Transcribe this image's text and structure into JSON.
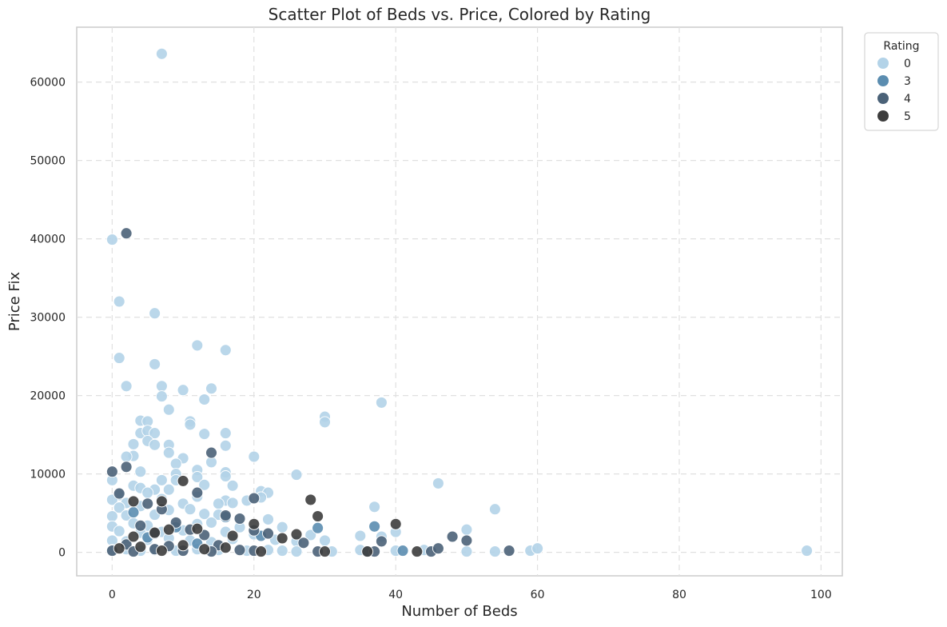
{
  "chart_data": {
    "type": "scatter",
    "title": "Scatter Plot of Beds vs. Price, Colored by Rating",
    "xlabel": "Number of Beds",
    "ylabel": "Price Fix",
    "xlim": [
      -5,
      103
    ],
    "ylim": [
      -3000,
      67000
    ],
    "x_ticks": [
      0,
      20,
      40,
      60,
      80,
      100
    ],
    "y_ticks": [
      0,
      10000,
      20000,
      30000,
      40000,
      50000,
      60000
    ],
    "grid": true,
    "legend": {
      "title": "Rating",
      "placement": "outside-top-right",
      "entries": [
        {
          "label": "0",
          "color": "#b3d3e8"
        },
        {
          "label": "3",
          "color": "#5b8db0"
        },
        {
          "label": "4",
          "color": "#4b6278"
        },
        {
          "label": "5",
          "color": "#3d3d3d"
        }
      ]
    },
    "series": [
      {
        "name": "0",
        "color": "#b3d3e8",
        "points": [
          [
            7,
            63600
          ],
          [
            0,
            39900
          ],
          [
            1,
            32000
          ],
          [
            6,
            30500
          ],
          [
            1,
            24800
          ],
          [
            12,
            26400
          ],
          [
            16,
            25800
          ],
          [
            6,
            24000
          ],
          [
            2,
            21200
          ],
          [
            7,
            21200
          ],
          [
            14,
            20900
          ],
          [
            10,
            20700
          ],
          [
            7,
            19900
          ],
          [
            13,
            19500
          ],
          [
            38,
            19100
          ],
          [
            8,
            18200
          ],
          [
            30,
            17300
          ],
          [
            30,
            16600
          ],
          [
            4,
            16800
          ],
          [
            5,
            16700
          ],
          [
            11,
            16700
          ],
          [
            11,
            16300
          ],
          [
            4,
            15200
          ],
          [
            5,
            15500
          ],
          [
            6,
            15200
          ],
          [
            13,
            15100
          ],
          [
            16,
            15200
          ],
          [
            5,
            14200
          ],
          [
            3,
            13800
          ],
          [
            6,
            13700
          ],
          [
            8,
            13700
          ],
          [
            16,
            13600
          ],
          [
            8,
            12700
          ],
          [
            3,
            12300
          ],
          [
            2,
            12200
          ],
          [
            10,
            12000
          ],
          [
            20,
            12200
          ],
          [
            14,
            11500
          ],
          [
            9,
            11300
          ],
          [
            4,
            10300
          ],
          [
            12,
            10500
          ],
          [
            16,
            10200
          ],
          [
            9,
            10000
          ],
          [
            26,
            9900
          ],
          [
            0,
            9200
          ],
          [
            7,
            9200
          ],
          [
            9,
            9200
          ],
          [
            12,
            9600
          ],
          [
            16,
            9700
          ],
          [
            46,
            8800
          ],
          [
            3,
            8500
          ],
          [
            4,
            8200
          ],
          [
            6,
            8000
          ],
          [
            13,
            8600
          ],
          [
            17,
            8500
          ],
          [
            21,
            7800
          ],
          [
            22,
            7600
          ],
          [
            5,
            7600
          ],
          [
            8,
            8000
          ],
          [
            1,
            7300
          ],
          [
            0,
            6700
          ],
          [
            7,
            6800
          ],
          [
            12,
            7100
          ],
          [
            16,
            6600
          ],
          [
            21,
            7000
          ],
          [
            19,
            6600
          ],
          [
            2,
            6300
          ],
          [
            10,
            6200
          ],
          [
            15,
            6200
          ],
          [
            17,
            6300
          ],
          [
            1,
            5700
          ],
          [
            4,
            5900
          ],
          [
            8,
            5400
          ],
          [
            11,
            5500
          ],
          [
            37,
            5800
          ],
          [
            54,
            5500
          ],
          [
            0,
            4600
          ],
          [
            2,
            4700
          ],
          [
            6,
            4800
          ],
          [
            13,
            4900
          ],
          [
            15,
            4800
          ],
          [
            22,
            4200
          ],
          [
            0,
            3300
          ],
          [
            3,
            3700
          ],
          [
            5,
            3400
          ],
          [
            9,
            3500
          ],
          [
            12,
            3600
          ],
          [
            14,
            3800
          ],
          [
            18,
            3200
          ],
          [
            24,
            3200
          ],
          [
            1,
            2700
          ],
          [
            4,
            2500
          ],
          [
            7,
            2600
          ],
          [
            10,
            2800
          ],
          [
            16,
            2600
          ],
          [
            20,
            2300
          ],
          [
            28,
            2200
          ],
          [
            35,
            2100
          ],
          [
            38,
            2000
          ],
          [
            40,
            2600
          ],
          [
            50,
            2900
          ],
          [
            0,
            1500
          ],
          [
            2,
            1400
          ],
          [
            5,
            1600
          ],
          [
            8,
            1800
          ],
          [
            11,
            1500
          ],
          [
            14,
            1300
          ],
          [
            17,
            1700
          ],
          [
            23,
            1600
          ],
          [
            26,
            1400
          ],
          [
            30,
            1500
          ],
          [
            0,
            300
          ],
          [
            2,
            400
          ],
          [
            4,
            200
          ],
          [
            6,
            300
          ],
          [
            9,
            200
          ],
          [
            12,
            400
          ],
          [
            15,
            300
          ],
          [
            19,
            200
          ],
          [
            22,
            300
          ],
          [
            24,
            200
          ],
          [
            26,
            100
          ],
          [
            31,
            100
          ],
          [
            35,
            300
          ],
          [
            40,
            200
          ],
          [
            44,
            300
          ],
          [
            50,
            100
          ],
          [
            54,
            100
          ],
          [
            59,
            200
          ],
          [
            60,
            500
          ],
          [
            98,
            200
          ]
        ]
      },
      {
        "name": "3",
        "color": "#5b8db0",
        "points": [
          [
            3,
            5100
          ],
          [
            9,
            3200
          ],
          [
            16,
            4500
          ],
          [
            29,
            3100
          ],
          [
            37,
            3300
          ],
          [
            5,
            1900
          ],
          [
            12,
            1100
          ],
          [
            21,
            2100
          ],
          [
            36,
            100
          ],
          [
            41,
            200
          ]
        ]
      },
      {
        "name": "4",
        "color": "#4b6278",
        "points": [
          [
            2,
            40700
          ],
          [
            0,
            10300
          ],
          [
            2,
            10900
          ],
          [
            14,
            12700
          ],
          [
            1,
            7500
          ],
          [
            12,
            7600
          ],
          [
            20,
            6900
          ],
          [
            5,
            6200
          ],
          [
            7,
            5500
          ],
          [
            16,
            4700
          ],
          [
            18,
            4300
          ],
          [
            9,
            3800
          ],
          [
            4,
            3400
          ],
          [
            11,
            2900
          ],
          [
            20,
            2800
          ],
          [
            6,
            2400
          ],
          [
            13,
            2200
          ],
          [
            22,
            2400
          ],
          [
            48,
            2000
          ],
          [
            27,
            1200
          ],
          [
            38,
            1400
          ],
          [
            50,
            1500
          ],
          [
            2,
            1000
          ],
          [
            8,
            800
          ],
          [
            15,
            900
          ],
          [
            0,
            200
          ],
          [
            3,
            100
          ],
          [
            6,
            400
          ],
          [
            10,
            200
          ],
          [
            14,
            100
          ],
          [
            18,
            300
          ],
          [
            20,
            200
          ],
          [
            29,
            100
          ],
          [
            37,
            100
          ],
          [
            45,
            100
          ],
          [
            46,
            500
          ],
          [
            56,
            200
          ]
        ]
      },
      {
        "name": "5",
        "color": "#3d3d3d",
        "points": [
          [
            10,
            9100
          ],
          [
            3,
            6500
          ],
          [
            7,
            6500
          ],
          [
            28,
            6700
          ],
          [
            29,
            4600
          ],
          [
            20,
            3600
          ],
          [
            40,
            3600
          ],
          [
            8,
            2900
          ],
          [
            12,
            3000
          ],
          [
            17,
            2100
          ],
          [
            6,
            2500
          ],
          [
            3,
            2000
          ],
          [
            26,
            2300
          ],
          [
            24,
            1800
          ],
          [
            1,
            500
          ],
          [
            4,
            700
          ],
          [
            7,
            200
          ],
          [
            10,
            900
          ],
          [
            13,
            400
          ],
          [
            16,
            600
          ],
          [
            21,
            100
          ],
          [
            30,
            100
          ],
          [
            36,
            100
          ],
          [
            43,
            100
          ]
        ]
      }
    ]
  }
}
